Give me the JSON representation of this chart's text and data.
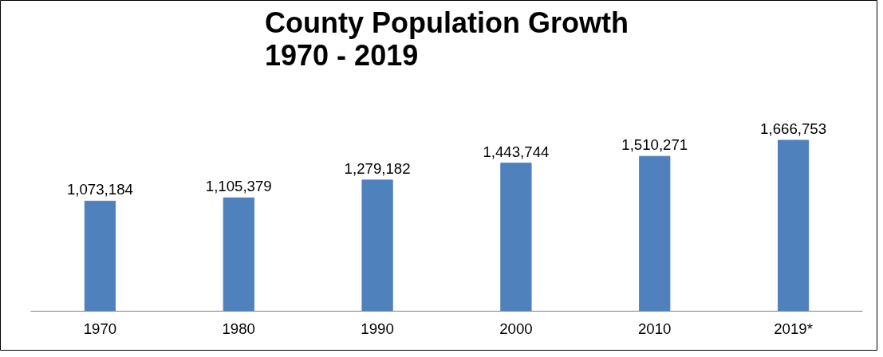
{
  "chart_data": {
    "type": "bar",
    "title": "County Population Growth\n1970 - 2019",
    "categories": [
      "1970",
      "1980",
      "1990",
      "2000",
      "2010",
      "2019*"
    ],
    "values": [
      1073184,
      1105379,
      1279182,
      1443744,
      1510271,
      1666753
    ],
    "color": "#4f81bd",
    "value_labels": [
      "1,073,184",
      "1,105,379",
      "1,279,182",
      "1,443,744",
      "1,510,271",
      "1,666,753"
    ],
    "tick_labels": "x"
  }
}
